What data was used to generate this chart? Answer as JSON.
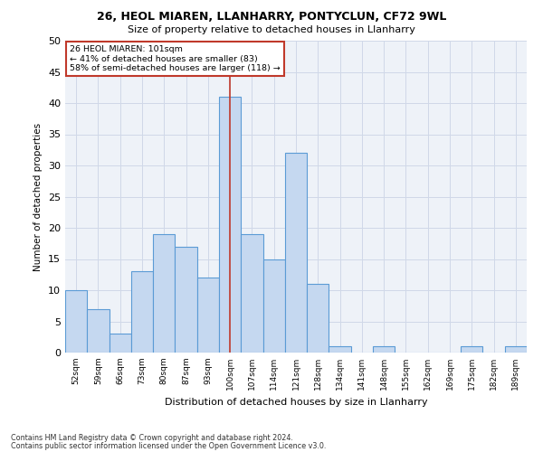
{
  "title1": "26, HEOL MIAREN, LLANHARRY, PONTYCLUN, CF72 9WL",
  "title2": "Size of property relative to detached houses in Llanharry",
  "xlabel": "Distribution of detached houses by size in Llanharry",
  "ylabel": "Number of detached properties",
  "categories": [
    "52sqm",
    "59sqm",
    "66sqm",
    "73sqm",
    "80sqm",
    "87sqm",
    "93sqm",
    "100sqm",
    "107sqm",
    "114sqm",
    "121sqm",
    "128sqm",
    "134sqm",
    "141sqm",
    "148sqm",
    "155sqm",
    "162sqm",
    "169sqm",
    "175sqm",
    "182sqm",
    "189sqm"
  ],
  "values": [
    10,
    7,
    3,
    13,
    19,
    17,
    12,
    41,
    19,
    15,
    32,
    11,
    1,
    0,
    1,
    0,
    0,
    0,
    1,
    0,
    1
  ],
  "bar_color": "#c5d8f0",
  "bar_edge_color": "#5b9bd5",
  "highlight_index": 7,
  "highlight_line_color": "#c0392b",
  "ylim": [
    0,
    50
  ],
  "yticks": [
    0,
    5,
    10,
    15,
    20,
    25,
    30,
    35,
    40,
    45,
    50
  ],
  "grid_color": "#d0d8e8",
  "bg_color": "#eef2f8",
  "annotation_text1": "26 HEOL MIAREN: 101sqm",
  "annotation_text2": "← 41% of detached houses are smaller (83)",
  "annotation_text3": "58% of semi-detached houses are larger (118) →",
  "annotation_box_color": "#ffffff",
  "annotation_border_color": "#c0392b",
  "footnote1": "Contains HM Land Registry data © Crown copyright and database right 2024.",
  "footnote2": "Contains public sector information licensed under the Open Government Licence v3.0."
}
